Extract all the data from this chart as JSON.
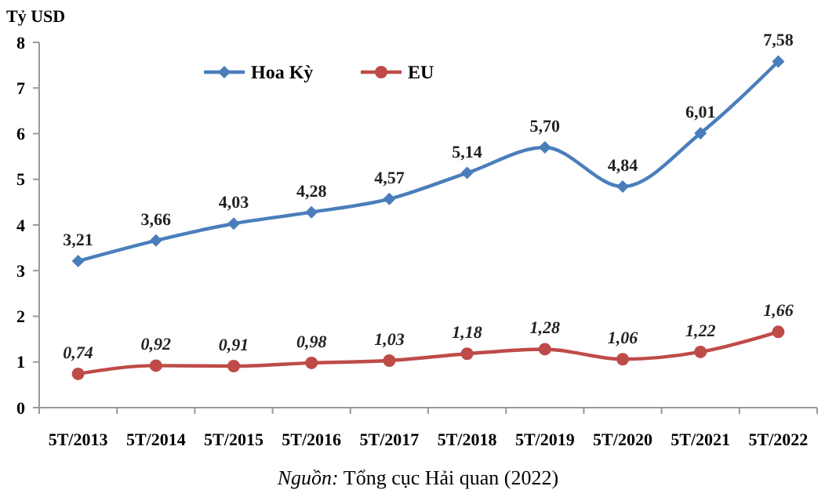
{
  "chart_data": {
    "type": "line",
    "ylabel": "Tỷ USD",
    "categories": [
      "5T/2013",
      "5T/2014",
      "5T/2015",
      "5T/2016",
      "5T/2017",
      "5T/2018",
      "5T/2019",
      "5T/2020",
      "5T/2021",
      "5T/2022"
    ],
    "series": [
      {
        "name": "Hoa Kỳ",
        "color": "#4a7ebb",
        "marker": "diamond",
        "values": [
          3.21,
          3.66,
          4.03,
          4.28,
          4.57,
          5.14,
          5.7,
          4.84,
          6.01,
          7.58
        ],
        "value_labels": [
          "3,21",
          "3,66",
          "4,03",
          "4,28",
          "4,57",
          "5,14",
          "5,70",
          "4,84",
          "6,01",
          "7,58"
        ]
      },
      {
        "name": "EU",
        "color": "#be4b48",
        "marker": "circle",
        "values": [
          0.74,
          0.92,
          0.91,
          0.98,
          1.03,
          1.18,
          1.28,
          1.06,
          1.22,
          1.66
        ],
        "value_labels": [
          "0,74",
          "0,92",
          "0,91",
          "0,98",
          "1,03",
          "1,18",
          "1,28",
          "1,06",
          "1,22",
          "1,66"
        ]
      }
    ],
    "ylim": [
      0,
      8
    ],
    "yticks": [
      0,
      1,
      2,
      3,
      4,
      5,
      6,
      7,
      8
    ],
    "grid": false,
    "legend": "top left",
    "annotations": [
      "Nguồn: Tổng cục Hải quan (2022)"
    ]
  }
}
